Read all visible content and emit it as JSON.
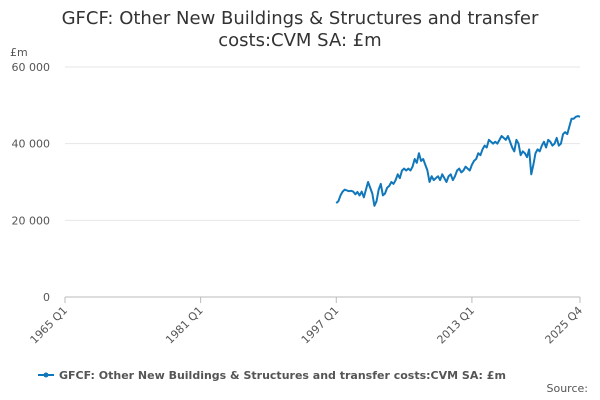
{
  "chart_data": {
    "type": "line",
    "title": "GFCF: Other New Buildings & Structures and transfer costs:CVM SA: £m",
    "y_label": "£m",
    "source": "Source:",
    "categories": [
      "1965 Q1",
      null,
      null,
      null,
      null,
      null,
      null,
      null,
      null,
      null,
      null,
      null,
      null,
      null,
      null,
      null,
      null,
      null,
      null,
      null,
      null,
      null,
      null,
      null,
      null,
      null,
      null,
      null,
      null,
      null,
      null,
      null,
      null,
      null,
      null,
      null,
      null,
      null,
      null,
      null,
      null,
      null,
      null,
      null,
      null,
      null,
      null,
      null,
      null,
      null,
      null,
      null,
      null,
      null,
      null,
      null,
      null,
      null,
      null,
      null,
      null,
      null,
      null,
      null,
      "1981 Q1",
      null,
      null,
      null,
      null,
      null,
      null,
      null,
      null,
      null,
      null,
      null,
      null,
      null,
      null,
      null,
      null,
      null,
      null,
      null,
      null,
      null,
      null,
      null,
      null,
      null,
      null,
      null,
      null,
      null,
      null,
      null,
      null,
      null,
      null,
      null,
      null,
      null,
      null,
      null,
      null,
      null,
      null,
      null,
      null,
      null,
      null,
      null,
      null,
      null,
      null,
      null,
      null,
      null,
      null,
      null,
      null,
      null,
      null,
      null,
      null,
      null,
      null,
      null,
      "1997 Q1",
      null,
      null,
      null,
      null,
      null,
      null,
      null,
      null,
      null,
      null,
      null,
      null,
      null,
      null,
      null,
      null,
      null,
      null,
      null,
      null,
      null,
      null,
      null,
      null,
      null,
      null,
      null,
      null,
      null,
      null,
      null,
      null,
      null,
      null,
      null,
      null,
      null,
      null,
      null,
      null,
      null,
      null,
      null,
      null,
      null,
      null,
      null,
      null,
      null,
      null,
      null,
      null,
      null,
      null,
      null,
      null,
      null,
      null,
      null,
      null,
      null,
      null,
      null,
      "2013 Q1",
      null,
      null,
      null,
      null,
      null,
      null,
      null,
      null,
      null,
      null,
      null,
      null,
      null,
      null,
      null,
      null,
      null,
      null,
      null,
      null,
      null,
      null,
      null,
      null,
      null,
      null,
      null,
      null,
      null,
      null,
      null,
      null,
      null,
      null,
      null,
      null,
      null,
      null,
      null,
      null,
      null,
      null,
      null,
      null,
      null,
      null,
      null,
      null,
      null,
      null,
      "2025 Q4"
    ],
    "series": [
      {
        "name": "GFCF: Other New Buildings & Structures and transfer costs:CVM SA: £m",
        "color": "#1177bb",
        "values": [
          null,
          null,
          null,
          null,
          null,
          null,
          null,
          null,
          null,
          null,
          null,
          null,
          null,
          null,
          null,
          null,
          null,
          null,
          null,
          null,
          null,
          null,
          null,
          null,
          null,
          null,
          null,
          null,
          null,
          null,
          null,
          null,
          null,
          null,
          null,
          null,
          null,
          null,
          null,
          null,
          null,
          null,
          null,
          null,
          null,
          null,
          null,
          null,
          null,
          null,
          null,
          null,
          null,
          null,
          null,
          null,
          null,
          null,
          null,
          null,
          null,
          null,
          null,
          null,
          null,
          null,
          null,
          null,
          null,
          null,
          null,
          null,
          null,
          null,
          null,
          null,
          null,
          null,
          null,
          null,
          null,
          null,
          null,
          null,
          null,
          null,
          null,
          null,
          null,
          null,
          null,
          null,
          null,
          null,
          null,
          null,
          null,
          null,
          null,
          null,
          null,
          null,
          null,
          null,
          null,
          null,
          null,
          null,
          null,
          null,
          null,
          null,
          null,
          null,
          null,
          null,
          null,
          null,
          null,
          null,
          null,
          null,
          null,
          null,
          null,
          null,
          null,
          null,
          24500,
          25000,
          26500,
          27500,
          28000,
          27800,
          27600,
          27700,
          27500,
          26800,
          27400,
          26500,
          27500,
          26000,
          28000,
          30000,
          28500,
          27000,
          23800,
          25000,
          28000,
          29500,
          26500,
          27000,
          28500,
          29000,
          30000,
          29500,
          30500,
          32000,
          31000,
          33000,
          33500,
          33000,
          33500,
          33000,
          34000,
          36000,
          35000,
          37500,
          35500,
          36000,
          34500,
          33000,
          30000,
          31500,
          30500,
          31000,
          31500,
          30500,
          32000,
          31000,
          30000,
          31500,
          32000,
          30500,
          31500,
          33000,
          33500,
          32500,
          33000,
          34000,
          33500,
          33000,
          34500,
          35500,
          36000,
          37500,
          37000,
          38500,
          39500,
          39000,
          41000,
          40500,
          40000,
          40500,
          40000,
          41000,
          42000,
          41500,
          41000,
          42000,
          40500,
          39000,
          38000,
          41000,
          40000,
          37000,
          38000,
          37500,
          36500,
          38500,
          32000,
          34500,
          37500,
          38500,
          38000,
          39500,
          40500,
          39000,
          41000,
          40500,
          39500,
          40000,
          41500,
          39500,
          40000,
          42500,
          43000,
          42500,
          44500,
          46500,
          46500,
          47000,
          47200,
          47000
        ]
      }
    ],
    "ylim": [
      0,
      60000
    ],
    "yticks": [
      0,
      {
        "value": 20000,
        "label": "20 000"
      },
      {
        "value": 40000,
        "label": "40 000"
      },
      {
        "value": 60000,
        "label": "60 000"
      }
    ],
    "grid": true,
    "legend": "bottom"
  }
}
